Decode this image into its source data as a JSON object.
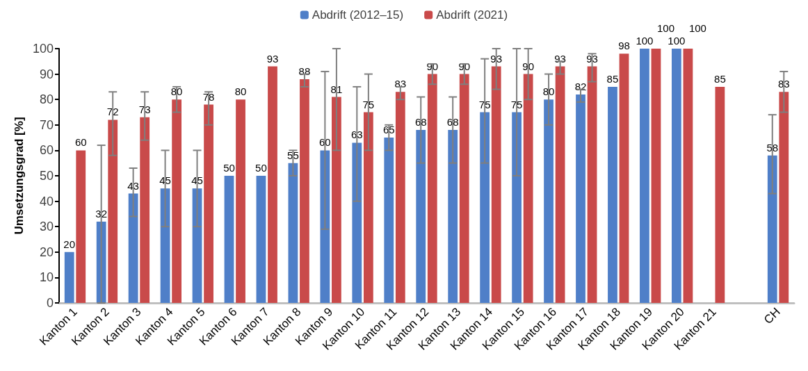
{
  "chart_data": {
    "type": "bar",
    "ylabel": "Umsetzungsgrad [%]",
    "categories": [
      "Kanton 1",
      "Kanton 2",
      "Kanton 3",
      "Kanton 4",
      "Kanton 5",
      "Kanton 6",
      "Kanton 7",
      "Kanton 8",
      "Kanton 9",
      "Kanton 10",
      "Kanton 11",
      "Kanton 12",
      "Kanton 13",
      "Kanton 14",
      "Kanton 15",
      "Kanton 16",
      "Kanton 17",
      "Kanton 18",
      "Kanton 19",
      "Kanton 20",
      "Kanton 21",
      null,
      "CH"
    ],
    "series": [
      {
        "name": "Abdrift (2012–15)",
        "color": "#4f7fc8",
        "values": [
          20,
          32,
          43,
          45,
          45,
          50,
          50,
          55,
          60,
          63,
          65,
          68,
          68,
          75,
          75,
          80,
          82,
          85,
          100,
          100,
          null,
          null,
          58
        ],
        "errors": [
          null,
          [
            0,
            62
          ],
          [
            34,
            53
          ],
          [
            30,
            60
          ],
          [
            30,
            60
          ],
          null,
          null,
          [
            50,
            60
          ],
          [
            29,
            91
          ],
          [
            40,
            85
          ],
          [
            60,
            70
          ],
          [
            55,
            81
          ],
          [
            55,
            81
          ],
          [
            55,
            96
          ],
          [
            50,
            100
          ],
          [
            70,
            90
          ],
          [
            79,
            84
          ],
          null,
          null,
          null,
          null,
          null,
          [
            43,
            74
          ]
        ]
      },
      {
        "name": "Abdrift (2021)",
        "color": "#c94a4a",
        "values": [
          60,
          72,
          73,
          80,
          78,
          80,
          93,
          88,
          81,
          75,
          83,
          90,
          90,
          93,
          90,
          93,
          93,
          98,
          100,
          100,
          85,
          null,
          83
        ],
        "errors": [
          null,
          [
            58,
            83
          ],
          [
            64,
            83
          ],
          [
            75,
            85
          ],
          [
            70,
            83
          ],
          null,
          null,
          [
            85,
            90
          ],
          [
            60,
            100
          ],
          [
            60,
            90
          ],
          [
            80,
            85
          ],
          [
            86,
            94
          ],
          [
            86,
            94
          ],
          [
            84,
            100
          ],
          [
            80,
            100
          ],
          [
            90,
            95
          ],
          [
            87,
            98
          ],
          null,
          null,
          null,
          null,
          null,
          [
            75,
            91
          ]
        ]
      }
    ],
    "ylim": [
      0,
      100
    ],
    "yticks": [
      0,
      10,
      20,
      30,
      40,
      50,
      60,
      70,
      80,
      90,
      100
    ],
    "data_labels": true,
    "legend": "top",
    "grid": false
  }
}
